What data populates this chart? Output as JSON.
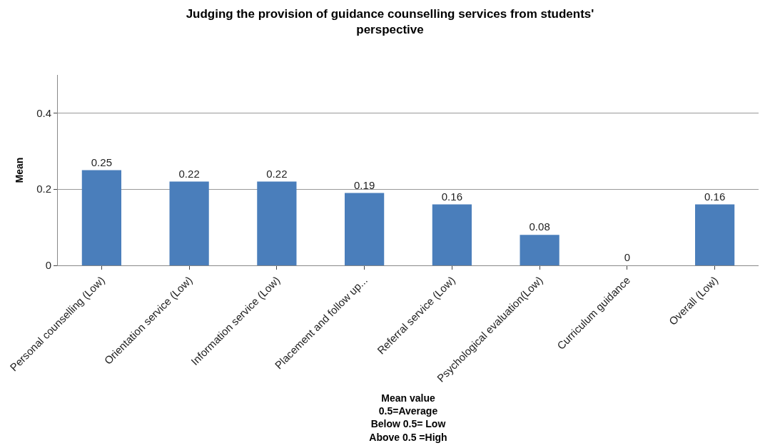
{
  "chart_data": {
    "type": "bar",
    "title": "Judging the provision of guidance counselling services from students' perspective",
    "xlabel": "Mean value\n0.5=Average\nBelow 0.5= Low\nAbove 0.5 =High",
    "ylabel": "Mean",
    "categories": [
      "Personal counselling (Low)",
      "Orientation service (Low)",
      "Information service (Low)",
      "Placement and follow up...",
      "Referral service (Low)",
      "Psychological evaluation(Low)",
      "Curriculum guidance",
      "Overall (Low)"
    ],
    "values": [
      0.25,
      0.22,
      0.22,
      0.19,
      0.16,
      0.08,
      0,
      0.16
    ],
    "color": "#4a7ebb",
    "ylim": [
      0,
      0.5
    ],
    "yticks": [
      0,
      0.2,
      0.4
    ],
    "grid": "y",
    "data_labels": true
  }
}
